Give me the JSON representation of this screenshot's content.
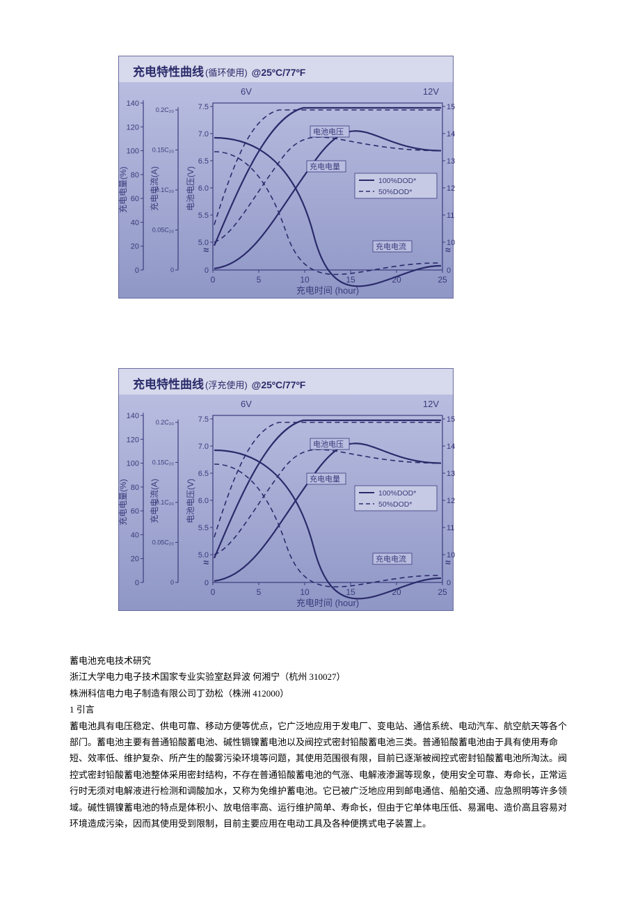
{
  "chartA": {
    "title_main": "充电特性曲线",
    "title_sub1": "(循环使用)",
    "title_sub2": "@25ºC/77ºF",
    "background_gradient_top": "#b9bde0",
    "background_gradient_bottom": "#8f97c6",
    "title_bg": "#d7d9ec",
    "title_color": "#2a2a6a",
    "axis_text_color": "#3a3a7a",
    "line_color": "#2a2a6a",
    "top_left": "6V",
    "top_right": "12V",
    "y1_label": "充电电量(%)",
    "y1_ticks": [
      "140",
      "120",
      "100",
      "80",
      "60",
      "40",
      "20",
      "0"
    ],
    "y2_label": "充电电流(A)",
    "y2_ticks": [
      "0.2C₂₀",
      "0.15C₂₀",
      "0.1C₂₀",
      "0.05C₂₀",
      "0"
    ],
    "y3_label": "电池电压(V)",
    "y3_ticks": [
      "7.5",
      "7.0",
      "6.5",
      "6.0",
      "5.5",
      "5.0",
      "0"
    ],
    "y4_ticks": [
      "15",
      "14",
      "13",
      "12",
      "11",
      "10",
      "0"
    ],
    "x_label": "充电时间 (hour)",
    "x_ticks": [
      "0",
      "5",
      "10",
      "15",
      "20",
      "25"
    ],
    "label_voltage": "电池电压",
    "label_capacity": "充电电量",
    "label_current": "充电电流",
    "legend1": "100%DOD*",
    "legend2": "50%DOD*"
  },
  "chartB": {
    "title_main": "充电特性曲线",
    "title_sub1": "(浮充使用)",
    "title_sub2": "@25ºC/77ºF",
    "background_gradient_top": "#b9bde0",
    "background_gradient_bottom": "#8f97c6",
    "title_bg": "#d7d9ec",
    "title_color": "#2a2a6a",
    "axis_text_color": "#3a3a7a",
    "line_color": "#2a2a6a",
    "top_left": "6V",
    "top_right": "12V",
    "y1_label": "充电电量(%)",
    "y1_ticks": [
      "140",
      "120",
      "100",
      "80",
      "60",
      "40",
      "20",
      "0"
    ],
    "y2_label": "充电电流(A)",
    "y2_ticks": [
      "0.2C₂₀",
      "0.15C₂₀",
      "0.1C₂₀",
      "0.05C₂₀",
      "0"
    ],
    "y3_label": "电池电压(V)",
    "y3_ticks": [
      "7.5",
      "7.0",
      "6.5",
      "6.0",
      "5.5",
      "5.0",
      "0"
    ],
    "y4_ticks": [
      "15",
      "14",
      "13",
      "12",
      "11",
      "10",
      "0"
    ],
    "x_label": "充电时间 (hour)",
    "x_ticks": [
      "0",
      "5",
      "10",
      "15",
      "20",
      "25"
    ],
    "label_voltage": "电池电压",
    "label_capacity": "充电电量",
    "label_current": "充电电流",
    "legend1": "100%DOD*",
    "legend2": "50%DOD*"
  },
  "body": {
    "p1": "蓄电池充电技术研究",
    "p2": "浙江大学电力电子技术国家专业实验室赵异波 何湘宁（杭州 310027）",
    "p3": "株洲科信电力电子制造有限公司丁劲松（株洲 412000）",
    "p4": "1 引言",
    "p5": "蓄电池具有电压稳定、供电可靠、移动方便等优点，它广泛地应用于发电厂、变电站、通信系统、电动汽车、航空航天等各个部门。蓄电池主要有普通铅酸蓄电池、碱性镉镍蓄电池以及阀控式密封铅酸蓄电池三类。普通铅酸蓄电池由于具有使用寿命短、效率低、维护复杂、所产生的酸雾污染环境等问题，其使用范围很有限，目前已逐渐被阀控式密封铅酸蓄电池所淘汰。阀控式密封铅酸蓄电池整体采用密封结构，不存在普通铅酸蓄电池的气涨、电解液渗漏等现象，使用安全可靠、寿命长，正常运行时无须对电解液进行检测和调酸加水，又称为免维护蓄电池。它已被广泛地应用到邮电通信、船舶交通、应急照明等许多领域。碱性镉镍蓄电池的特点是体积小、放电倍率高、运行维护简单、寿命长，但由于它单体电压低、易漏电、造价高且容易对环境造成污染，因而其使用受到限制，目前主要应用在电动工具及各种便携式电子装置上。"
  }
}
